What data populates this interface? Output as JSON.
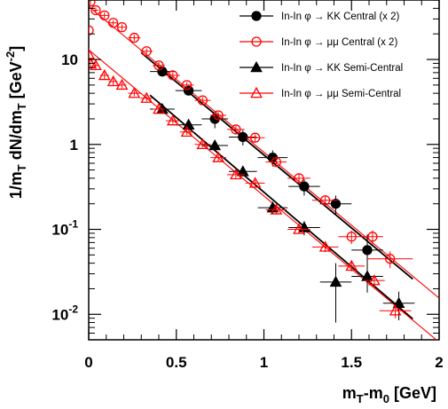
{
  "chart_data": {
    "type": "scatter",
    "xlabel": {
      "main": "m",
      "sub1": "T",
      "mid": "-m",
      "sub2": "0",
      "unit": " [GeV]"
    },
    "ylabel": {
      "pre": "1/m",
      "sub1": "T",
      "mid": " dN/dm",
      "sub2": "T",
      "unit": " [GeV",
      "sup": "-2",
      "close": "]"
    },
    "xlim": [
      0,
      2
    ],
    "ylim_log10": [
      -2.3,
      1.7
    ],
    "log_y": true,
    "grid": false,
    "legend_position": "top-right",
    "x_tick_labels": [
      "0",
      "0.5",
      "1",
      "1.5",
      "2"
    ],
    "x_ticks": [
      0,
      0.5,
      1,
      1.5,
      2
    ],
    "y_ticks": [
      {
        "value": 10,
        "label": "10",
        "sup": ""
      },
      {
        "value": 1,
        "label": "1",
        "sup": ""
      },
      {
        "value": 0.1,
        "label": "10",
        "sup": "-1"
      },
      {
        "value": 0.01,
        "label": "10",
        "sup": "-2"
      }
    ],
    "series": [
      {
        "name": "In-In φ → KK Central (x 2)",
        "color": "#000000",
        "marker": "circle",
        "filled": true,
        "x": [
          0.42,
          0.57,
          0.72,
          0.88,
          1.05,
          1.23,
          1.41,
          1.59
        ],
        "y": [
          7.2,
          4.3,
          2.0,
          1.22,
          0.7,
          0.32,
          0.2,
          0.057
        ],
        "xerr": [
          0.07,
          0.075,
          0.075,
          0.08,
          0.085,
          0.09,
          0.09,
          0.09
        ],
        "yerr_lo": [
          0.9,
          0.5,
          0.45,
          0.25,
          0.15,
          0.07,
          0.05,
          0.02
        ],
        "yerr_hi": [
          0.9,
          0.5,
          0.45,
          0.25,
          0.15,
          0.07,
          0.05,
          0.03
        ],
        "fit": {
          "x": [
            0.3,
            1.85
          ],
          "y": [
            12.0,
            0.026
          ]
        }
      },
      {
        "name": "In-In φ → μμ Central (x 2)",
        "color": "#ff0000",
        "marker": "circle",
        "filled": false,
        "x": [
          0.0,
          0.01,
          0.04,
          0.09,
          0.14,
          0.19,
          0.26,
          0.33,
          0.4,
          0.48,
          0.56,
          0.65,
          0.74,
          0.84,
          0.95,
          1.07,
          1.2,
          1.35,
          1.5,
          1.62,
          1.72
        ],
        "y": [
          22,
          48,
          38,
          33,
          27,
          24,
          18,
          12.5,
          8.5,
          6.5,
          5.0,
          3.3,
          2.2,
          1.5,
          1.2,
          0.62,
          0.4,
          0.22,
          0.082,
          0.082,
          0.045
        ],
        "xerr": [
          0,
          0,
          0.015,
          0.025,
          0.025,
          0.025,
          0.035,
          0.035,
          0.035,
          0.04,
          0.04,
          0.045,
          0.045,
          0.05,
          0.055,
          0.06,
          0.065,
          0.075,
          0.075,
          0.06,
          0.13
        ],
        "yerr_lo": [
          2,
          5,
          3,
          3,
          2,
          2,
          1.5,
          1,
          0.8,
          0.6,
          0.4,
          0.3,
          0.2,
          0.15,
          0.12,
          0.07,
          0.05,
          0.03,
          0.015,
          0.015,
          0.01
        ],
        "yerr_hi": [
          2,
          5,
          3,
          3,
          2,
          2,
          1.5,
          1,
          0.8,
          0.6,
          0.4,
          0.3,
          0.2,
          0.15,
          0.12,
          0.07,
          0.05,
          0.03,
          0.015,
          0.015,
          0.01
        ],
        "fit": {
          "x": [
            0.0,
            2.0
          ],
          "y": [
            42,
            0.0155
          ]
        }
      },
      {
        "name": "In-In φ → KK Semi-Central",
        "color": "#000000",
        "marker": "triangle",
        "filled": true,
        "x": [
          0.42,
          0.57,
          0.72,
          0.88,
          1.05,
          1.23,
          1.41,
          1.59,
          1.77
        ],
        "y": [
          2.6,
          1.7,
          0.97,
          0.48,
          0.18,
          0.105,
          0.024,
          0.028,
          0.0135
        ],
        "xerr": [
          0.07,
          0.075,
          0.075,
          0.08,
          0.085,
          0.09,
          0.09,
          0.09,
          0.09
        ],
        "yerr_lo": [
          0.3,
          0.2,
          0.12,
          0.06,
          0.03,
          0.02,
          0.016,
          0.01,
          0.005
        ],
        "yerr_hi": [
          0.3,
          0.2,
          0.12,
          0.06,
          0.03,
          0.02,
          0.016,
          0.01,
          0.005
        ],
        "fit": {
          "x": [
            0.35,
            1.85
          ],
          "y": [
            3.8,
            0.0088
          ]
        }
      },
      {
        "name": "In-In φ → μμ Semi-Central",
        "color": "#ff0000",
        "marker": "triangle",
        "filled": false,
        "x": [
          0.0,
          0.01,
          0.04,
          0.09,
          0.14,
          0.19,
          0.26,
          0.33,
          0.4,
          0.48,
          0.56,
          0.65,
          0.74,
          0.84,
          0.95,
          1.07,
          1.2,
          1.35,
          1.5,
          1.63,
          1.75
        ],
        "y": [
          11.5,
          9.0,
          8.5,
          6.5,
          5.5,
          5.0,
          4.0,
          3.5,
          2.6,
          1.9,
          1.4,
          1.0,
          0.7,
          0.44,
          0.35,
          0.17,
          0.1,
          0.062,
          0.037,
          0.025,
          0.011
        ],
        "xerr": [
          0,
          0,
          0.015,
          0.025,
          0.025,
          0.025,
          0.035,
          0.035,
          0.035,
          0.04,
          0.04,
          0.045,
          0.045,
          0.05,
          0.055,
          0.06,
          0.065,
          0.075,
          0.075,
          0.06,
          0.09
        ],
        "yerr_lo": [
          1,
          1,
          0.8,
          0.6,
          0.5,
          0.4,
          0.3,
          0.3,
          0.2,
          0.15,
          0.1,
          0.08,
          0.06,
          0.04,
          0.03,
          0.02,
          0.01,
          0.008,
          0.005,
          0.004,
          0.002
        ],
        "yerr_hi": [
          1,
          1,
          0.8,
          0.6,
          0.5,
          0.4,
          0.3,
          0.3,
          0.2,
          0.15,
          0.1,
          0.08,
          0.06,
          0.04,
          0.03,
          0.02,
          0.01,
          0.008,
          0.005,
          0.004,
          0.002
        ],
        "fit": {
          "x": [
            0.0,
            2.0
          ],
          "y": [
            13.0,
            0.0047
          ]
        }
      }
    ]
  }
}
